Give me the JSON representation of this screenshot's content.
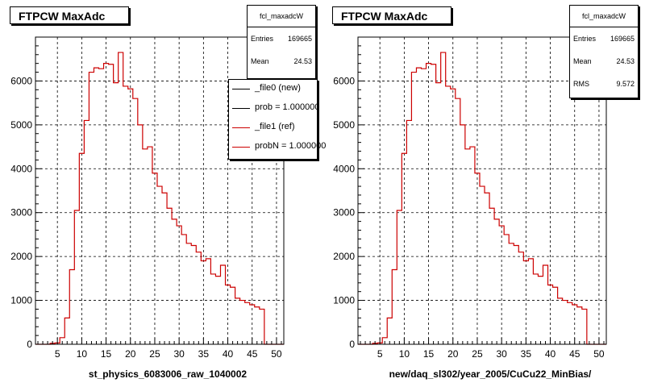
{
  "chart_data": [
    {
      "type": "histogram",
      "title": "FTPCW MaxAdc",
      "xlabel": "st_physics_6083006_raw_1040002",
      "ylabel": "",
      "xlim": [
        0.5,
        51.5
      ],
      "ylim": [
        0,
        7000
      ],
      "x_ticks": [
        5,
        10,
        15,
        20,
        25,
        30,
        35,
        40,
        45,
        50
      ],
      "y_ticks": [
        0,
        1000,
        2000,
        3000,
        4000,
        5000,
        6000
      ],
      "grid": true,
      "line_color": "#cc0000",
      "stats": {
        "name": "fcl_maxadcW",
        "entries_label": "Entries",
        "entries_value": "169665",
        "mean_label": "Mean",
        "mean_value": "24.53"
      },
      "legend": {
        "placement": "top-right",
        "entries": [
          {
            "label": "_file0 (new)",
            "color": "#000000"
          },
          {
            "label": "prob = 1.000000",
            "color": "#000000"
          },
          {
            "label": "_file1 (ref)",
            "color": "#cc0000"
          },
          {
            "label": "probN = 1.000000",
            "color": "#cc0000"
          }
        ]
      },
      "bins_x": [
        1,
        2,
        3,
        4,
        5,
        6,
        7,
        8,
        9,
        10,
        11,
        12,
        13,
        14,
        15,
        16,
        17,
        18,
        19,
        20,
        21,
        22,
        23,
        24,
        25,
        26,
        27,
        28,
        29,
        30,
        31,
        32,
        33,
        34,
        35,
        36,
        37,
        38,
        39,
        40,
        41,
        42,
        43,
        44,
        45,
        46,
        47,
        48,
        49,
        50,
        51
      ],
      "values": [
        0,
        0,
        0,
        20,
        30,
        150,
        600,
        1700,
        3050,
        4350,
        5100,
        6200,
        6300,
        6280,
        6400,
        6380,
        5960,
        6650,
        5880,
        5820,
        5600,
        5000,
        4450,
        4500,
        3900,
        3600,
        3450,
        3100,
        2850,
        2700,
        2500,
        2300,
        2250,
        2100,
        1900,
        1950,
        1600,
        1550,
        1800,
        1350,
        1300,
        1050,
        1000,
        950,
        900,
        850,
        800,
        0,
        0,
        0,
        0
      ]
    },
    {
      "type": "histogram",
      "title": "FTPCW MaxAdc",
      "xlabel": "new/daq_sl302/year_2005/CuCu22_MinBias/",
      "ylabel": "",
      "xlim": [
        0.5,
        51.5
      ],
      "ylim": [
        0,
        7000
      ],
      "x_ticks": [
        5,
        10,
        15,
        20,
        25,
        30,
        35,
        40,
        45,
        50
      ],
      "y_ticks": [
        0,
        1000,
        2000,
        3000,
        4000,
        5000,
        6000
      ],
      "grid": true,
      "line_color": "#cc0000",
      "stats": {
        "name": "fcl_maxadcW",
        "entries_label": "Entries",
        "entries_value": "169665",
        "mean_label": "Mean",
        "mean_value": "24.53",
        "rms_label": "RMS",
        "rms_value": "9.572"
      },
      "bins_x": [
        1,
        2,
        3,
        4,
        5,
        6,
        7,
        8,
        9,
        10,
        11,
        12,
        13,
        14,
        15,
        16,
        17,
        18,
        19,
        20,
        21,
        22,
        23,
        24,
        25,
        26,
        27,
        28,
        29,
        30,
        31,
        32,
        33,
        34,
        35,
        36,
        37,
        38,
        39,
        40,
        41,
        42,
        43,
        44,
        45,
        46,
        47,
        48,
        49,
        50,
        51
      ],
      "values": [
        0,
        0,
        0,
        20,
        30,
        150,
        600,
        1700,
        3050,
        4350,
        5100,
        6200,
        6300,
        6280,
        6400,
        6380,
        5960,
        6650,
        5880,
        5820,
        5600,
        5000,
        4450,
        4500,
        3900,
        3600,
        3450,
        3100,
        2850,
        2700,
        2500,
        2300,
        2250,
        2100,
        1900,
        1950,
        1600,
        1550,
        1800,
        1350,
        1300,
        1050,
        1000,
        950,
        900,
        850,
        800,
        0,
        0,
        0,
        0
      ]
    }
  ]
}
